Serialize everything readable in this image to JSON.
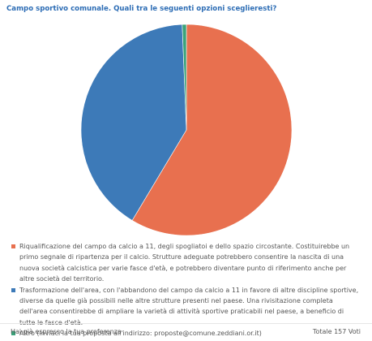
{
  "chart_data": {
    "type": "pie",
    "title": "Campo sportivo comunale. Quali tra le seguenti opzioni sceglieresti?",
    "categories": [
      "Riqualificazione del campo da calcio a 11, degli spogliatoi e dello spazio circostante. Costituirebbe un primo segnale di ripartenza per il calcio. Strutture adeguate potrebbero consentire la nascita di una nuova società calcistica per varie fasce d'età, e potrebbero diventare punto di riferimento anche per altre società del territorio.",
      "Trasformazione dell'area, con l'abbandono del campo da calcio a 11 in favore di altre discipline sportive, diverse da quelle già possibili nelle altre strutture presenti nel paese. Una rivisitazione completa dell'area consentirebbe di ampliare la varietà di attività sportive praticabili nel paese, a beneficio di tutte le fasce d'età.",
      "Altro (inviaci la tua proposta all'indirizzo: proposte@comune.zeddiani.or.it)"
    ],
    "values": [
      92,
      64,
      1
    ],
    "colors": [
      "#e8704f",
      "#3d7ab8",
      "#3aa37a"
    ]
  },
  "footer": {
    "message": "Hai già espresso la tua preferenza",
    "total": "Totale 157 Voti"
  }
}
